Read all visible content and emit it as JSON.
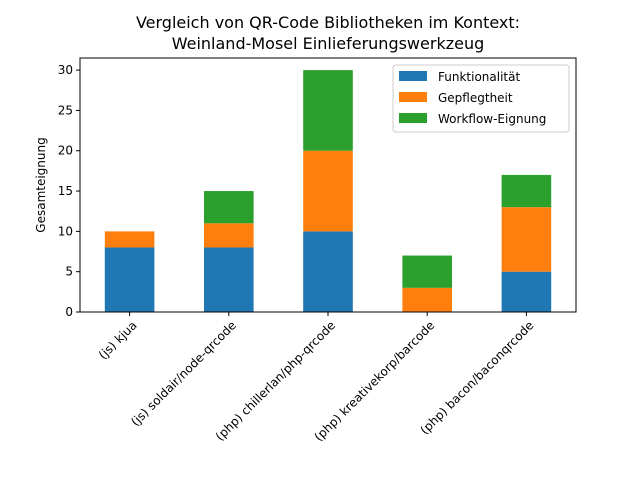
{
  "chart_data": {
    "type": "bar",
    "stacked": true,
    "title": "Vergleich von QR-Code Bibliotheken im Kontext:\nWeinland-Mosel Einlieferungswerkzeug",
    "xlabel": "",
    "ylabel": "Gesamteignung",
    "ylim": [
      0,
      31.5
    ],
    "yticks": [
      0,
      5,
      10,
      15,
      20,
      25,
      30
    ],
    "grid": false,
    "legend_placement": "top-right",
    "categories": [
      "(js) kjua",
      "(js) soldair/node-qrcode",
      "(php) chillerlan/php-qrcode",
      "(php) kreativekorp/barcode",
      "(php) bacon/baconqrcode"
    ],
    "series": [
      {
        "name": "Funktionalität",
        "color": "#1f77b4",
        "values": [
          8,
          8,
          10,
          0,
          5
        ]
      },
      {
        "name": "Gepflegtheit",
        "color": "#ff7f0e",
        "values": [
          2,
          3,
          10,
          3,
          8
        ]
      },
      {
        "name": "Workflow-Eignung",
        "color": "#2ca02c",
        "values": [
          0,
          4,
          10,
          4,
          4
        ]
      }
    ]
  }
}
